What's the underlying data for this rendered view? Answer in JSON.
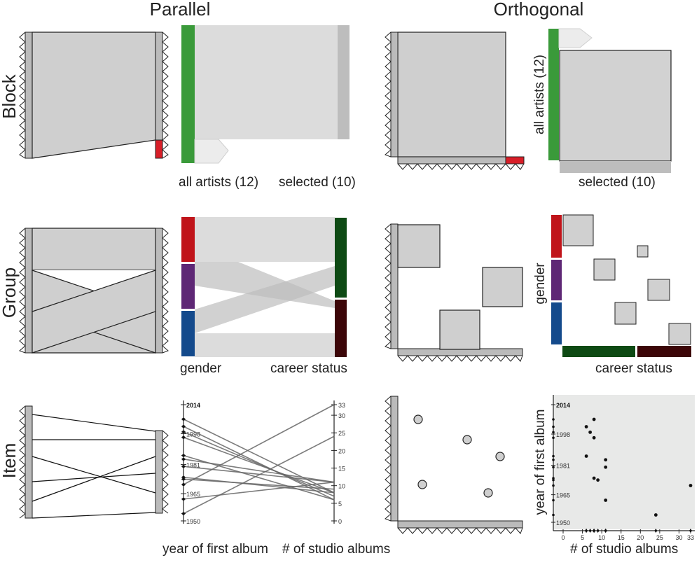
{
  "headers": {
    "parallel": "Parallel",
    "orthogonal": "Orthogonal"
  },
  "rows": {
    "block": "Block",
    "group": "Group",
    "item": "Item"
  },
  "block": {
    "all_label": "all artists (12)",
    "selected_label": "selected (10)",
    "total": 12,
    "selected": 10
  },
  "group": {
    "gender_label": "gender",
    "career_label": "career status",
    "colors": {
      "gender_a": "#c0141a",
      "gender_b": "#5e2775",
      "gender_c": "#144a8c",
      "career_a": "#0e4a14",
      "career_b": "#3c0608"
    }
  },
  "item": {
    "year_label": "year of first album",
    "albums_label": "# of studio albums",
    "year_ticks": [
      "2014",
      "1998",
      "1981",
      "1965",
      "1950"
    ],
    "album_ticks_parallel": [
      "33",
      "30",
      "25",
      "20",
      "15",
      "10",
      "5",
      "0"
    ],
    "album_ticks_scatter": [
      "0",
      "5",
      "10",
      "15",
      "20",
      "25",
      "30"
    ],
    "album_tick_last": "33",
    "artists": [
      {
        "year": 2006,
        "albums": 8
      },
      {
        "year": 2002,
        "albums": 6
      },
      {
        "year": 1999,
        "albums": 7
      },
      {
        "year": 1996,
        "albums": 8
      },
      {
        "year": 1986,
        "albums": 6
      },
      {
        "year": 1984,
        "albums": 11
      },
      {
        "year": 1980,
        "albums": 11
      },
      {
        "year": 1974,
        "albums": 8
      },
      {
        "year": 1973,
        "albums": 9
      },
      {
        "year": 1970,
        "albums": 33
      },
      {
        "year": 1962,
        "albums": 11
      },
      {
        "year": 1954,
        "albums": 24
      }
    ]
  },
  "colors": {
    "green": "#3a9a3a",
    "gray_fill": "#cfcfcf",
    "flow_fill": "#dadada",
    "sel_bar": "#bdbdbd",
    "red": "#d81e28",
    "scatter_bg": "#e8e9e8"
  }
}
